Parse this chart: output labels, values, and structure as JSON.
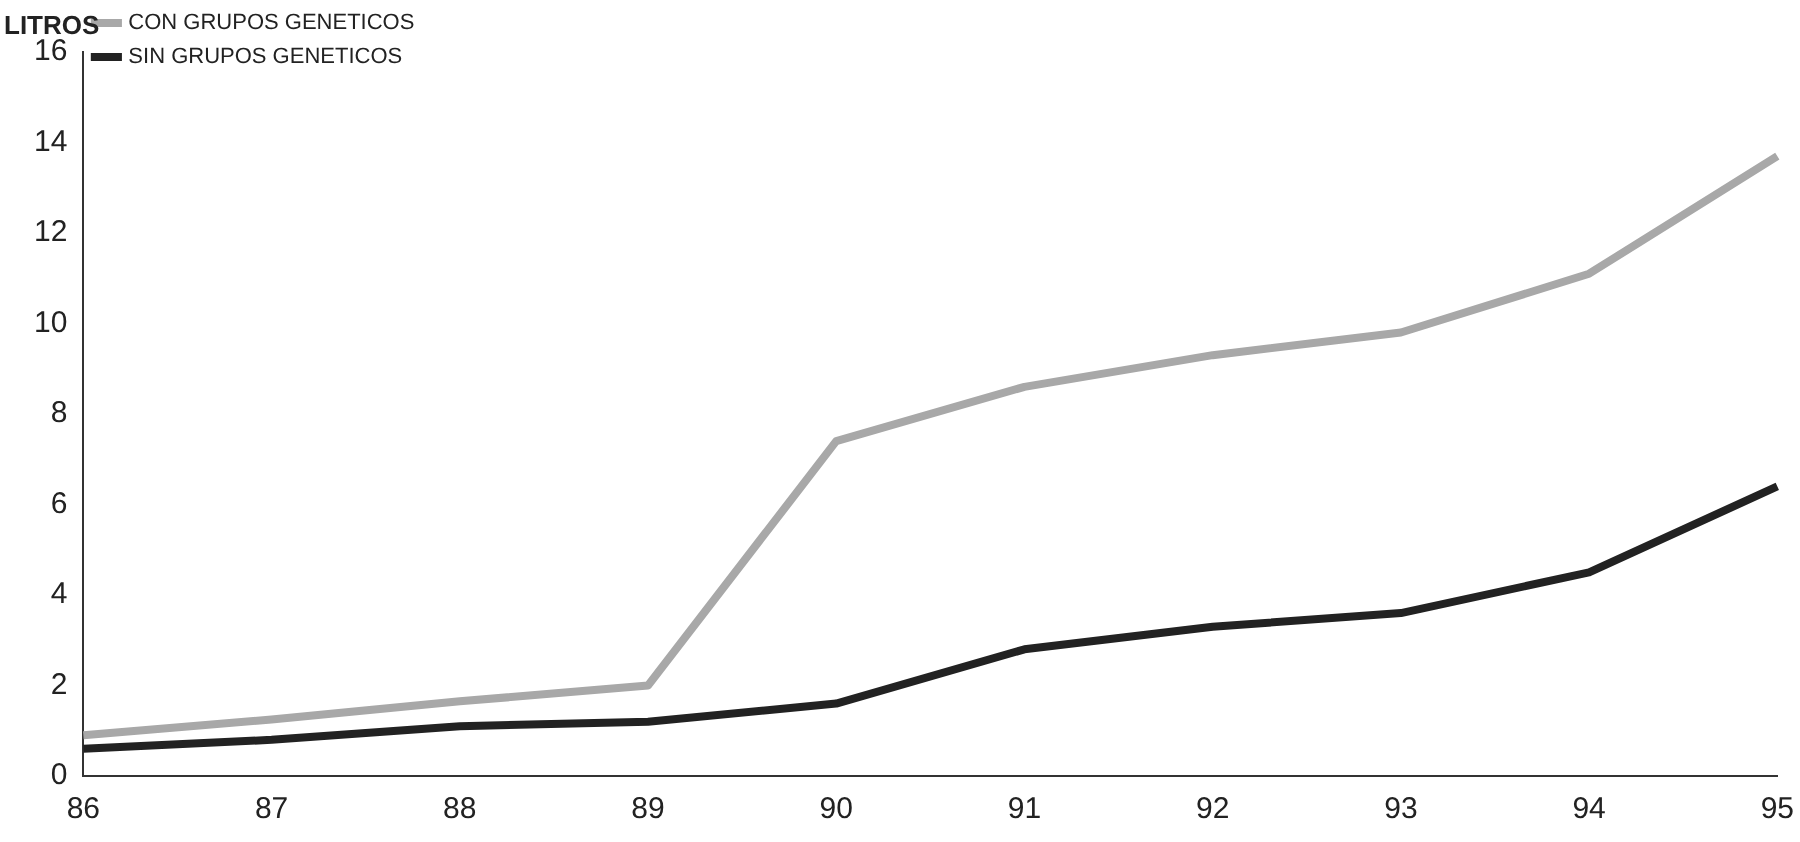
{
  "chart_data": {
    "type": "line",
    "ylabel": "LITROS",
    "categories": [
      "86",
      "87",
      "88",
      "89",
      "90",
      "91",
      "92",
      "93",
      "94",
      "95"
    ],
    "series": [
      {
        "name": "CON GRUPOS GENETICOS",
        "color": "#a8a8a8",
        "values": [
          0.9,
          1.25,
          1.65,
          2.0,
          7.4,
          8.6,
          9.3,
          9.8,
          11.1,
          13.7
        ]
      },
      {
        "name": "SIN GRUPOS GENETICOS",
        "color": "#222222",
        "values": [
          0.6,
          0.8,
          1.1,
          1.2,
          1.6,
          2.8,
          3.3,
          3.6,
          4.5,
          6.4
        ]
      }
    ],
    "ylim": [
      0,
      16
    ],
    "yticks": [
      0,
      2,
      4,
      6,
      8,
      10,
      12,
      14,
      16
    ],
    "grid": false,
    "legend": "top left",
    "marker": "none",
    "line_style": "solid"
  }
}
